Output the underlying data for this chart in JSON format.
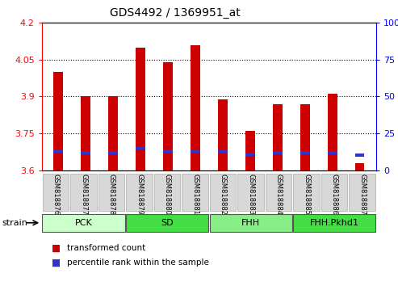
{
  "title": "GDS4492 / 1369951_at",
  "samples": [
    "GSM818876",
    "GSM818877",
    "GSM818878",
    "GSM818879",
    "GSM818880",
    "GSM818881",
    "GSM818882",
    "GSM818883",
    "GSM818884",
    "GSM818885",
    "GSM818886",
    "GSM818887"
  ],
  "groups": [
    {
      "label": "PCK",
      "color": "#ccffcc",
      "start": 0,
      "end": 3
    },
    {
      "label": "SD",
      "color": "#44dd44",
      "start": 3,
      "end": 6
    },
    {
      "label": "FHH",
      "color": "#88ee88",
      "start": 6,
      "end": 9
    },
    {
      "label": "FHH.Pkhd1",
      "color": "#44dd44",
      "start": 9,
      "end": 12
    }
  ],
  "group_row_label": "strain",
  "ylim_left": [
    3.6,
    4.2
  ],
  "ylim_right": [
    0,
    100
  ],
  "yticks_left": [
    3.6,
    3.75,
    3.9,
    4.05,
    4.2
  ],
  "yticks_right": [
    0,
    25,
    50,
    75,
    100
  ],
  "transformed_count": [
    4.0,
    3.9,
    3.9,
    4.1,
    4.04,
    4.11,
    3.89,
    3.76,
    3.87,
    3.87,
    3.91,
    3.63
  ],
  "percentile_rank_pct": [
    13,
    12,
    12,
    15,
    13,
    13,
    13,
    11,
    12,
    12,
    12,
    10
  ],
  "bar_color_red": "#cc0000",
  "bar_color_blue": "#3333cc",
  "bar_width": 0.35,
  "legend_red": "transformed count",
  "legend_blue": "percentile rank within the sample",
  "grid_yticks": [
    3.75,
    3.9,
    4.05
  ],
  "cell_bg": "#d0d0d0",
  "plot_bg": "#ffffff"
}
